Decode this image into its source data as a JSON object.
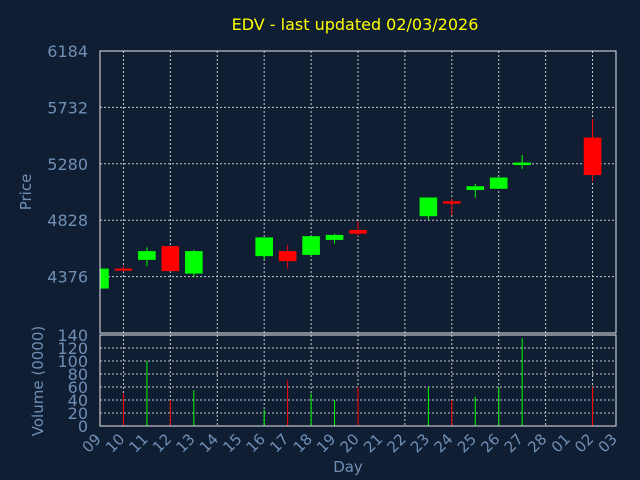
{
  "chart_data": {
    "type": "candlestick",
    "title": "EDV - last updated 02/03/2026",
    "xlabel": "Day",
    "ylabel": "Price",
    "volume_label": "Volume (0000)",
    "x_ticks": [
      "09",
      "10",
      "11",
      "12",
      "13",
      "14",
      "15",
      "16",
      "17",
      "18",
      "19",
      "20",
      "21",
      "22",
      "23",
      "24",
      "25",
      "26",
      "27",
      "28",
      "01",
      "02",
      "03"
    ],
    "price_ticks": [
      6184,
      5732,
      5280,
      4828,
      4376
    ],
    "price_range": [
      3924,
      6184
    ],
    "volume_ticks": [
      140,
      120,
      100,
      80,
      60,
      40,
      20,
      0
    ],
    "volume_range": [
      0,
      140
    ],
    "grid": true,
    "colors": {
      "background": "#0f1e33",
      "text": "#6f8fb6",
      "title": "#ffff00",
      "up": "#00ff00",
      "down": "#ff0000",
      "grid": "#c8c8c8"
    },
    "candles": [
      {
        "day": "09",
        "open": 4280,
        "high": 4440,
        "low": 4280,
        "close": 4440,
        "volume": 0
      },
      {
        "day": "10",
        "open": 4440,
        "high": 4460,
        "low": 4415,
        "close": 4430,
        "volume": 50
      },
      {
        "day": "11",
        "open": 4510,
        "high": 4610,
        "low": 4460,
        "close": 4580,
        "volume": 100
      },
      {
        "day": "12",
        "open": 4620,
        "high": 4620,
        "low": 4420,
        "close": 4420,
        "volume": 40
      },
      {
        "day": "13",
        "open": 4400,
        "high": 4590,
        "low": 4370,
        "close": 4580,
        "volume": 55
      },
      {
        "day": "16",
        "open": 4540,
        "high": 4690,
        "low": 4510,
        "close": 4690,
        "volume": 25
      },
      {
        "day": "17",
        "open": 4580,
        "high": 4630,
        "low": 4440,
        "close": 4500,
        "volume": 70
      },
      {
        "day": "18",
        "open": 4550,
        "high": 4700,
        "low": 4540,
        "close": 4700,
        "volume": 50
      },
      {
        "day": "19",
        "open": 4670,
        "high": 4720,
        "low": 4640,
        "close": 4710,
        "volume": 40
      },
      {
        "day": "20",
        "open": 4750,
        "high": 4820,
        "low": 4700,
        "close": 4720,
        "volume": 60
      },
      {
        "day": "23",
        "open": 4860,
        "high": 5010,
        "low": 4830,
        "close": 5010,
        "volume": 60
      },
      {
        "day": "24",
        "open": 4980,
        "high": 5000,
        "low": 4870,
        "close": 4960,
        "volume": 40
      },
      {
        "day": "25",
        "open": 5070,
        "high": 5120,
        "low": 5010,
        "close": 5100,
        "volume": 45
      },
      {
        "day": "26",
        "open": 5080,
        "high": 5170,
        "low": 5080,
        "close": 5170,
        "volume": 60
      },
      {
        "day": "27",
        "open": 5270,
        "high": 5350,
        "low": 5240,
        "close": 5290,
        "volume": 135
      },
      {
        "day": "02",
        "open": 5490,
        "high": 5640,
        "low": 5140,
        "close": 5190,
        "volume": 60
      }
    ]
  }
}
